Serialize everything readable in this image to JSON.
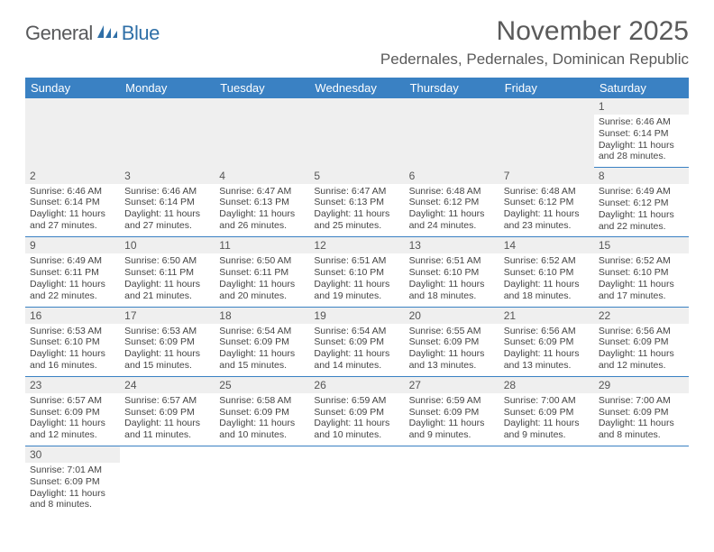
{
  "brand": {
    "part1": "General",
    "part2": "Blue"
  },
  "title": "November 2025",
  "location": "Pedernales, Pedernales, Dominican Republic",
  "colors": {
    "header_bg": "#3a81c3",
    "header_fg": "#ffffff",
    "daynum_bg": "#efefef",
    "rule": "#3a81c3",
    "text": "#444444",
    "title_color": "#5a5a5a",
    "logo_dark": "#58595b",
    "logo_blue": "#2f6fa7"
  },
  "days_of_week": [
    "Sunday",
    "Monday",
    "Tuesday",
    "Wednesday",
    "Thursday",
    "Friday",
    "Saturday"
  ],
  "weeks": [
    [
      null,
      null,
      null,
      null,
      null,
      null,
      {
        "n": "1",
        "sr": "6:46 AM",
        "ss": "6:14 PM",
        "dl": "11 hours and 28 minutes."
      }
    ],
    [
      {
        "n": "2",
        "sr": "6:46 AM",
        "ss": "6:14 PM",
        "dl": "11 hours and 27 minutes."
      },
      {
        "n": "3",
        "sr": "6:46 AM",
        "ss": "6:14 PM",
        "dl": "11 hours and 27 minutes."
      },
      {
        "n": "4",
        "sr": "6:47 AM",
        "ss": "6:13 PM",
        "dl": "11 hours and 26 minutes."
      },
      {
        "n": "5",
        "sr": "6:47 AM",
        "ss": "6:13 PM",
        "dl": "11 hours and 25 minutes."
      },
      {
        "n": "6",
        "sr": "6:48 AM",
        "ss": "6:12 PM",
        "dl": "11 hours and 24 minutes."
      },
      {
        "n": "7",
        "sr": "6:48 AM",
        "ss": "6:12 PM",
        "dl": "11 hours and 23 minutes."
      },
      {
        "n": "8",
        "sr": "6:49 AM",
        "ss": "6:12 PM",
        "dl": "11 hours and 22 minutes."
      }
    ],
    [
      {
        "n": "9",
        "sr": "6:49 AM",
        "ss": "6:11 PM",
        "dl": "11 hours and 22 minutes."
      },
      {
        "n": "10",
        "sr": "6:50 AM",
        "ss": "6:11 PM",
        "dl": "11 hours and 21 minutes."
      },
      {
        "n": "11",
        "sr": "6:50 AM",
        "ss": "6:11 PM",
        "dl": "11 hours and 20 minutes."
      },
      {
        "n": "12",
        "sr": "6:51 AM",
        "ss": "6:10 PM",
        "dl": "11 hours and 19 minutes."
      },
      {
        "n": "13",
        "sr": "6:51 AM",
        "ss": "6:10 PM",
        "dl": "11 hours and 18 minutes."
      },
      {
        "n": "14",
        "sr": "6:52 AM",
        "ss": "6:10 PM",
        "dl": "11 hours and 18 minutes."
      },
      {
        "n": "15",
        "sr": "6:52 AM",
        "ss": "6:10 PM",
        "dl": "11 hours and 17 minutes."
      }
    ],
    [
      {
        "n": "16",
        "sr": "6:53 AM",
        "ss": "6:10 PM",
        "dl": "11 hours and 16 minutes."
      },
      {
        "n": "17",
        "sr": "6:53 AM",
        "ss": "6:09 PM",
        "dl": "11 hours and 15 minutes."
      },
      {
        "n": "18",
        "sr": "6:54 AM",
        "ss": "6:09 PM",
        "dl": "11 hours and 15 minutes."
      },
      {
        "n": "19",
        "sr": "6:54 AM",
        "ss": "6:09 PM",
        "dl": "11 hours and 14 minutes."
      },
      {
        "n": "20",
        "sr": "6:55 AM",
        "ss": "6:09 PM",
        "dl": "11 hours and 13 minutes."
      },
      {
        "n": "21",
        "sr": "6:56 AM",
        "ss": "6:09 PM",
        "dl": "11 hours and 13 minutes."
      },
      {
        "n": "22",
        "sr": "6:56 AM",
        "ss": "6:09 PM",
        "dl": "11 hours and 12 minutes."
      }
    ],
    [
      {
        "n": "23",
        "sr": "6:57 AM",
        "ss": "6:09 PM",
        "dl": "11 hours and 12 minutes."
      },
      {
        "n": "24",
        "sr": "6:57 AM",
        "ss": "6:09 PM",
        "dl": "11 hours and 11 minutes."
      },
      {
        "n": "25",
        "sr": "6:58 AM",
        "ss": "6:09 PM",
        "dl": "11 hours and 10 minutes."
      },
      {
        "n": "26",
        "sr": "6:59 AM",
        "ss": "6:09 PM",
        "dl": "11 hours and 10 minutes."
      },
      {
        "n": "27",
        "sr": "6:59 AM",
        "ss": "6:09 PM",
        "dl": "11 hours and 9 minutes."
      },
      {
        "n": "28",
        "sr": "7:00 AM",
        "ss": "6:09 PM",
        "dl": "11 hours and 9 minutes."
      },
      {
        "n": "29",
        "sr": "7:00 AM",
        "ss": "6:09 PM",
        "dl": "11 hours and 8 minutes."
      }
    ],
    [
      {
        "n": "30",
        "sr": "7:01 AM",
        "ss": "6:09 PM",
        "dl": "11 hours and 8 minutes."
      },
      null,
      null,
      null,
      null,
      null,
      null
    ]
  ],
  "labels": {
    "sunrise": "Sunrise:",
    "sunset": "Sunset:",
    "daylight": "Daylight:"
  }
}
